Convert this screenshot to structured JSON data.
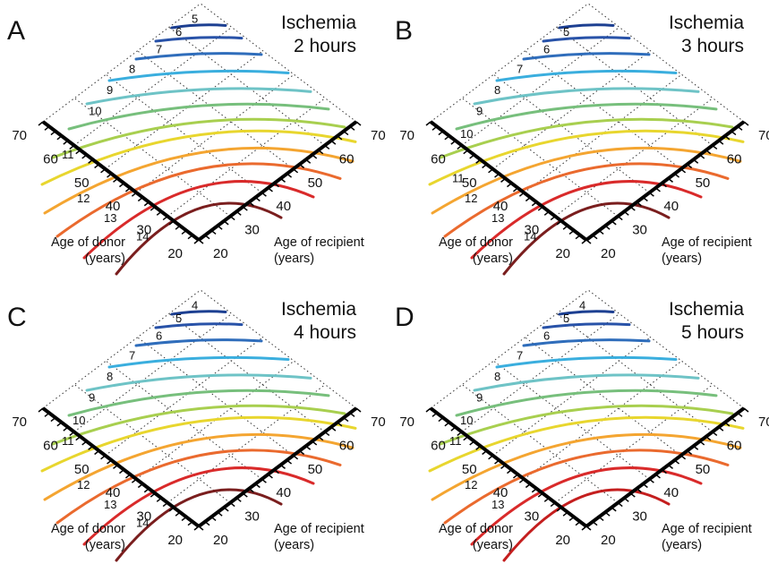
{
  "chart_data": [
    {
      "type": "contour",
      "panel_letter": "A",
      "title": [
        "Ischemia",
        "2 hours"
      ],
      "xlabel": [
        "Age of donor",
        "(years)"
      ],
      "ylabel": [
        "Age of recipient",
        "(years)"
      ],
      "x_ticks": [
        "20",
        "30",
        "40",
        "50",
        "60",
        "70"
      ],
      "y_ticks": [
        "20",
        "30",
        "40",
        "50",
        "60",
        "70"
      ],
      "xlim": [
        20,
        70
      ],
      "ylim": [
        20,
        70
      ],
      "contours": [
        {
          "level": "5",
          "color": "#1c3f91"
        },
        {
          "level": "6",
          "color": "#2852a8"
        },
        {
          "level": "7",
          "color": "#2f6dbb"
        },
        {
          "level": "8",
          "color": "#3aaede"
        },
        {
          "level": "9",
          "color": "#6ec3c6"
        },
        {
          "level": "10",
          "color": "#77bf7c"
        },
        {
          "level": "",
          "color": "#a8cf4f"
        },
        {
          "level": "11",
          "color": "#e8d62e"
        },
        {
          "level": "",
          "color": "#f4a531"
        },
        {
          "level": "12",
          "color": "#ea6a2e"
        },
        {
          "level": "13",
          "color": "#d92a2a"
        },
        {
          "level": "14",
          "color": "#7a1e1e"
        }
      ]
    },
    {
      "type": "contour",
      "panel_letter": "B",
      "title": [
        "Ischemia",
        "3 hours"
      ],
      "xlabel": [
        "Age of donor",
        "(years)"
      ],
      "ylabel": [
        "Age of recipient",
        "(years)"
      ],
      "x_ticks": [
        "20",
        "30",
        "40",
        "50",
        "60",
        "70"
      ],
      "y_ticks": [
        "20",
        "30",
        "40",
        "50",
        "60",
        "70"
      ],
      "xlim": [
        20,
        70
      ],
      "ylim": [
        20,
        70
      ],
      "contours": [
        {
          "level": "",
          "color": "#1c3f91"
        },
        {
          "level": "5",
          "color": "#2852a8"
        },
        {
          "level": "6",
          "color": "#2f6dbb"
        },
        {
          "level": "7",
          "color": "#3aaede"
        },
        {
          "level": "8",
          "color": "#6ec3c6"
        },
        {
          "level": "9",
          "color": "#77bf7c"
        },
        {
          "level": "10",
          "color": "#a8cf4f"
        },
        {
          "level": "",
          "color": "#e8d62e"
        },
        {
          "level": "11",
          "color": "#f4a531"
        },
        {
          "level": "12",
          "color": "#ea6a2e"
        },
        {
          "level": "13",
          "color": "#d92a2a"
        },
        {
          "level": "14",
          "color": "#7a1e1e"
        }
      ]
    },
    {
      "type": "contour",
      "panel_letter": "C",
      "title": [
        "Ischemia",
        "4 hours"
      ],
      "xlabel": [
        "Age of donor",
        "(years)"
      ],
      "ylabel": [
        "Age of recipient",
        "(years)"
      ],
      "x_ticks": [
        "20",
        "30",
        "40",
        "50",
        "60",
        "70"
      ],
      "y_ticks": [
        "20",
        "30",
        "40",
        "50",
        "60",
        "70"
      ],
      "xlim": [
        20,
        70
      ],
      "ylim": [
        20,
        70
      ],
      "contours": [
        {
          "level": "4",
          "color": "#1c3f91"
        },
        {
          "level": "5",
          "color": "#2852a8"
        },
        {
          "level": "6",
          "color": "#2f6dbb"
        },
        {
          "level": "7",
          "color": "#3aaede"
        },
        {
          "level": "8",
          "color": "#6ec3c6"
        },
        {
          "level": "9",
          "color": "#77bf7c"
        },
        {
          "level": "10",
          "color": "#a8cf4f"
        },
        {
          "level": "11",
          "color": "#e8d62e"
        },
        {
          "level": "",
          "color": "#f4a531"
        },
        {
          "level": "12",
          "color": "#ea6a2e"
        },
        {
          "level": "13",
          "color": "#d92a2a"
        },
        {
          "level": "14",
          "color": "#7a1e1e"
        }
      ]
    },
    {
      "type": "contour",
      "panel_letter": "D",
      "title": [
        "Ischemia",
        "5 hours"
      ],
      "xlabel": [
        "Age of donor",
        "(years)"
      ],
      "ylabel": [
        "Age of recipient",
        "(years)"
      ],
      "x_ticks": [
        "20",
        "30",
        "40",
        "50",
        "60",
        "70"
      ],
      "y_ticks": [
        "20",
        "30",
        "40",
        "50",
        "60",
        "70"
      ],
      "xlim": [
        20,
        70
      ],
      "ylim": [
        20,
        70
      ],
      "contours": [
        {
          "level": "4",
          "color": "#1c3f91"
        },
        {
          "level": "5",
          "color": "#2852a8"
        },
        {
          "level": "6",
          "color": "#2f6dbb"
        },
        {
          "level": "7",
          "color": "#3aaede"
        },
        {
          "level": "8",
          "color": "#6ec3c6"
        },
        {
          "level": "9",
          "color": "#77bf7c"
        },
        {
          "level": "10",
          "color": "#a8cf4f"
        },
        {
          "level": "11",
          "color": "#e8d62e"
        },
        {
          "level": "",
          "color": "#f4a531"
        },
        {
          "level": "12",
          "color": "#ea6a2e"
        },
        {
          "level": "13",
          "color": "#d92a2a"
        },
        {
          "level": "",
          "color": "#c41e1e"
        }
      ]
    }
  ]
}
